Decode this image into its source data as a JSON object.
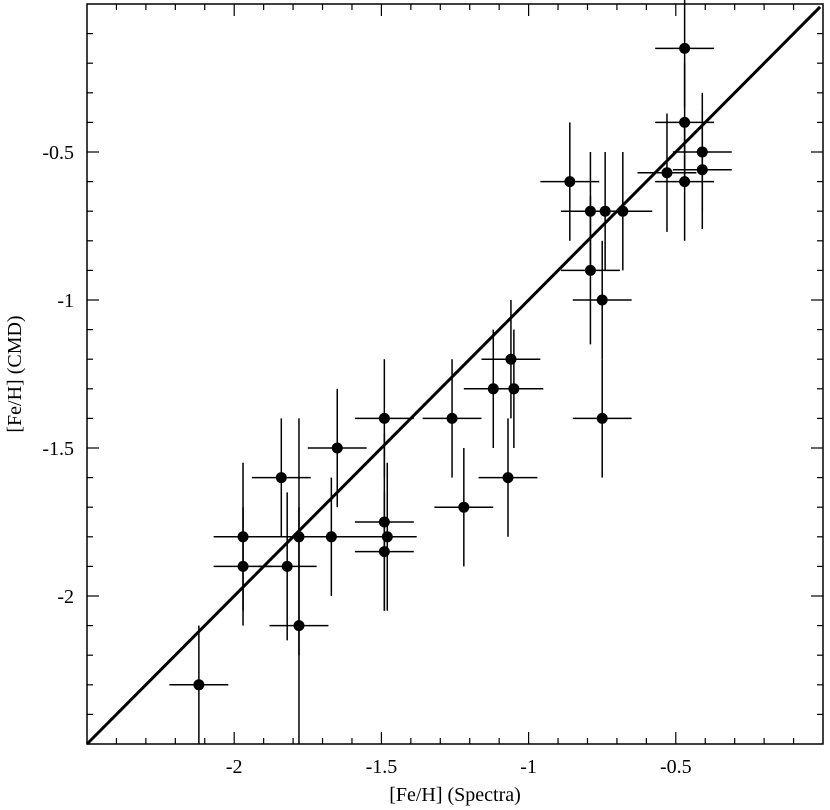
{
  "chart_data": {
    "type": "scatter",
    "title": "",
    "xlabel": "[Fe/H] (Spectra)",
    "ylabel": "[Fe/H] (CMD)",
    "xlim": [
      -2.5,
      0.0
    ],
    "ylim": [
      -2.5,
      0.0
    ],
    "x_ticks": [
      {
        "value": -2.0,
        "label": "-2"
      },
      {
        "value": -1.5,
        "label": "-1.5"
      },
      {
        "value": -1.0,
        "label": "-1"
      },
      {
        "value": -0.5,
        "label": "-0.5"
      }
    ],
    "y_ticks": [
      {
        "value": -2.0,
        "label": "-2"
      },
      {
        "value": -1.5,
        "label": "-1.5"
      },
      {
        "value": -1.0,
        "label": "-1"
      },
      {
        "value": -0.5,
        "label": "-0.5"
      }
    ],
    "minor_step": 0.1,
    "grid": false,
    "reference_line": {
      "x": [
        -2.5,
        -0.01
      ],
      "y": [
        -2.5,
        -0.01
      ]
    },
    "series": [
      {
        "points": [
          {
            "x": -2.12,
            "y": -2.3,
            "xerr": 0.1,
            "yerr": 0.2
          },
          {
            "x": -1.97,
            "y": -1.8,
            "xerr": 0.1,
            "yerr": 0.25
          },
          {
            "x": -1.97,
            "y": -1.9,
            "xerr": 0.1,
            "yerr": 0.2
          },
          {
            "x": -1.84,
            "y": -1.6,
            "xerr": 0.1,
            "yerr": 0.2
          },
          {
            "x": -1.82,
            "y": -1.9,
            "xerr": 0.1,
            "yerr": 0.25
          },
          {
            "x": -1.78,
            "y": -1.8,
            "xerr": 0.1,
            "yerr": 0.4
          },
          {
            "x": -1.78,
            "y": -2.1,
            "xerr": 0.1,
            "yerr": 0.4
          },
          {
            "x": -1.65,
            "y": -1.5,
            "xerr": 0.1,
            "yerr": 0.2
          },
          {
            "x": -1.67,
            "y": -1.8,
            "xerr": 0.1,
            "yerr": 0.2
          },
          {
            "x": -1.49,
            "y": -1.4,
            "xerr": 0.1,
            "yerr": 0.2
          },
          {
            "x": -1.49,
            "y": -1.75,
            "xerr": 0.1,
            "yerr": 0.3
          },
          {
            "x": -1.48,
            "y": -1.8,
            "xerr": 0.1,
            "yerr": 0.25
          },
          {
            "x": -1.49,
            "y": -1.85,
            "xerr": 0.1,
            "yerr": 0.2
          },
          {
            "x": -1.26,
            "y": -1.4,
            "xerr": 0.1,
            "yerr": 0.2
          },
          {
            "x": -1.22,
            "y": -1.7,
            "xerr": 0.1,
            "yerr": 0.2
          },
          {
            "x": -1.12,
            "y": -1.3,
            "xerr": 0.1,
            "yerr": 0.2
          },
          {
            "x": -1.06,
            "y": -1.2,
            "xerr": 0.1,
            "yerr": 0.2
          },
          {
            "x": -1.05,
            "y": -1.3,
            "xerr": 0.1,
            "yerr": 0.2
          },
          {
            "x": -1.07,
            "y": -1.6,
            "xerr": 0.1,
            "yerr": 0.2
          },
          {
            "x": -0.86,
            "y": -0.6,
            "xerr": 0.1,
            "yerr": 0.2
          },
          {
            "x": -0.79,
            "y": -0.7,
            "xerr": 0.1,
            "yerr": 0.2
          },
          {
            "x": -0.74,
            "y": -0.7,
            "xerr": 0.1,
            "yerr": 0.2
          },
          {
            "x": -0.68,
            "y": -0.7,
            "xerr": 0.1,
            "yerr": 0.2
          },
          {
            "x": -0.79,
            "y": -0.9,
            "xerr": 0.1,
            "yerr": 0.25
          },
          {
            "x": -0.75,
            "y": -1.0,
            "xerr": 0.1,
            "yerr": 0.2
          },
          {
            "x": -0.75,
            "y": -1.4,
            "xerr": 0.1,
            "yerr": 0.2
          },
          {
            "x": -0.53,
            "y": -0.57,
            "xerr": 0.1,
            "yerr": 0.2
          },
          {
            "x": -0.47,
            "y": -0.6,
            "xerr": 0.1,
            "yerr": 0.2
          },
          {
            "x": -0.47,
            "y": -0.4,
            "xerr": 0.1,
            "yerr": 0.2
          },
          {
            "x": -0.47,
            "y": -0.15,
            "xerr": 0.1,
            "yerr": 0.2
          },
          {
            "x": -0.41,
            "y": -0.5,
            "xerr": 0.1,
            "yerr": 0.2
          },
          {
            "x": -0.41,
            "y": -0.56,
            "xerr": 0.1,
            "yerr": 0.2
          }
        ]
      }
    ]
  }
}
